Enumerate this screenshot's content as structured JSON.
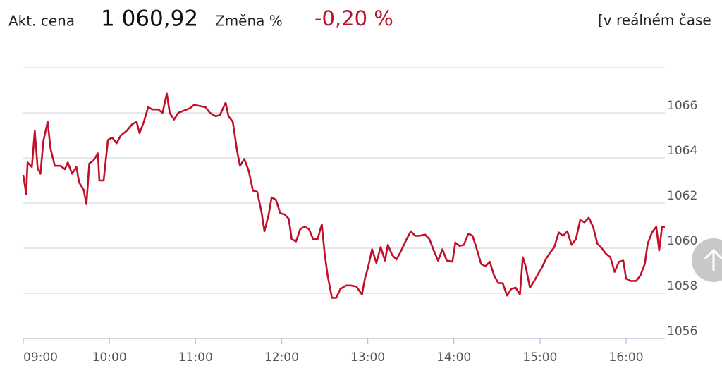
{
  "header": {
    "price_label": "Akt. cena",
    "price": "1 060,92",
    "change_label": "Změna %",
    "change": "-0,20 %",
    "realtime": "[v reálném čase"
  },
  "chart_data": {
    "type": "line",
    "color": "#c0102a",
    "grid": true,
    "x": [
      "09:00",
      "09:02",
      "09:03",
      "09:06",
      "09:08",
      "09:10",
      "09:12",
      "09:14",
      "09:17",
      "09:19",
      "09:22",
      "09:26",
      "09:29",
      "09:31",
      "09:34",
      "09:37",
      "09:39",
      "09:42",
      "09:44",
      "09:46",
      "09:49",
      "09:52",
      "09:53",
      "09:56",
      "09:59",
      "10:02",
      "10:05",
      "10:08",
      "10:12",
      "10:16",
      "10:19",
      "10:21",
      "10:24",
      "10:27",
      "10:30",
      "10:34",
      "10:37",
      "10:40",
      "10:42",
      "10:45",
      "10:48",
      "10:52",
      "10:56",
      "10:59",
      "11:03",
      "11:07",
      "11:10",
      "11:14",
      "11:17",
      "11:21",
      "11:23",
      "11:26",
      "11:29",
      "11:31",
      "11:34",
      "11:37",
      "11:40",
      "11:43",
      "11:46",
      "11:48",
      "11:51",
      "11:53",
      "11:56",
      "11:59",
      "12:02",
      "12:05",
      "12:07",
      "12:10",
      "12:13",
      "12:16",
      "12:19",
      "12:22",
      "12:25",
      "12:28",
      "12:30",
      "12:32",
      "12:35",
      "12:38",
      "12:41",
      "12:45",
      "12:48",
      "12:52",
      "12:56",
      "12:58",
      "13:00",
      "13:03",
      "13:06",
      "13:09",
      "13:12",
      "13:14",
      "13:17",
      "13:20",
      "13:23",
      "13:27",
      "13:30",
      "13:33",
      "13:36",
      "13:40",
      "13:43",
      "13:46",
      "13:49",
      "13:52",
      "13:55",
      "13:59",
      "14:01",
      "14:04",
      "14:07",
      "14:10",
      "14:13",
      "14:16",
      "14:19",
      "14:22",
      "14:25",
      "14:28",
      "14:31",
      "14:34",
      "14:37",
      "14:40",
      "14:43",
      "14:46",
      "14:48",
      "14:50",
      "14:53",
      "14:56",
      "14:59",
      "15:01",
      "15:04",
      "15:07",
      "15:10",
      "15:13",
      "15:16",
      "15:19",
      "15:22",
      "15:25",
      "15:28",
      "15:31",
      "15:34",
      "15:37",
      "15:40",
      "15:43",
      "15:46",
      "15:49",
      "15:52",
      "15:55",
      "15:58",
      "16:00",
      "16:03",
      "16:07",
      "16:10",
      "16:13",
      "16:15",
      "16:18",
      "16:21",
      "16:23",
      "16:25",
      "16:27"
    ],
    "values": [
      1063.25,
      1062.4,
      1063.8,
      1063.6,
      1065.2,
      1063.55,
      1063.3,
      1064.75,
      1065.6,
      1064.4,
      1063.65,
      1063.65,
      1063.5,
      1063.8,
      1063.3,
      1063.6,
      1062.9,
      1062.6,
      1061.95,
      1063.75,
      1063.9,
      1064.2,
      1063.0,
      1063.0,
      1064.8,
      1064.9,
      1064.65,
      1065.0,
      1065.2,
      1065.5,
      1065.6,
      1065.1,
      1065.6,
      1066.25,
      1066.15,
      1066.15,
      1066.0,
      1066.85,
      1066.0,
      1065.7,
      1066.0,
      1066.1,
      1066.2,
      1066.35,
      1066.3,
      1066.25,
      1066.0,
      1065.85,
      1065.9,
      1066.45,
      1065.85,
      1065.6,
      1064.3,
      1063.65,
      1063.95,
      1063.45,
      1062.55,
      1062.5,
      1061.6,
      1060.75,
      1061.5,
      1062.25,
      1062.15,
      1061.55,
      1061.5,
      1061.3,
      1060.4,
      1060.3,
      1060.85,
      1060.95,
      1060.85,
      1060.4,
      1060.4,
      1061.05,
      1059.75,
      1058.8,
      1057.8,
      1057.8,
      1058.2,
      1058.35,
      1058.35,
      1058.3,
      1057.95,
      1058.65,
      1059.1,
      1059.95,
      1059.35,
      1060.05,
      1059.45,
      1060.15,
      1059.7,
      1059.5,
      1059.85,
      1060.4,
      1060.75,
      1060.55,
      1060.55,
      1060.6,
      1060.4,
      1059.9,
      1059.45,
      1059.95,
      1059.45,
      1059.4,
      1060.25,
      1060.1,
      1060.15,
      1060.65,
      1060.55,
      1059.95,
      1059.3,
      1059.2,
      1059.4,
      1058.8,
      1058.45,
      1058.45,
      1057.9,
      1058.2,
      1058.25,
      1057.95,
      1059.6,
      1059.2,
      1058.25,
      1058.55,
      1058.9,
      1059.1,
      1059.5,
      1059.8,
      1060.05,
      1060.7,
      1060.55,
      1060.75,
      1060.15,
      1060.4,
      1061.25,
      1061.15,
      1061.35,
      1060.95,
      1060.2,
      1060.0,
      1059.75,
      1059.6,
      1058.95,
      1059.4,
      1059.45,
      1058.65,
      1058.55,
      1058.55,
      1058.8,
      1059.3,
      1060.2,
      1060.7,
      1060.95,
      1059.9,
      1060.95,
      1060.95
    ],
    "xlim": [
      "09:00",
      "16:27"
    ],
    "xticks": [
      "09:00",
      "10:00",
      "11:00",
      "12:00",
      "13:00",
      "14:00",
      "15:00",
      "16:00"
    ],
    "ylim": [
      1056,
      1068
    ],
    "yticks": [
      1056,
      1058,
      1060,
      1062,
      1064,
      1066
    ]
  }
}
